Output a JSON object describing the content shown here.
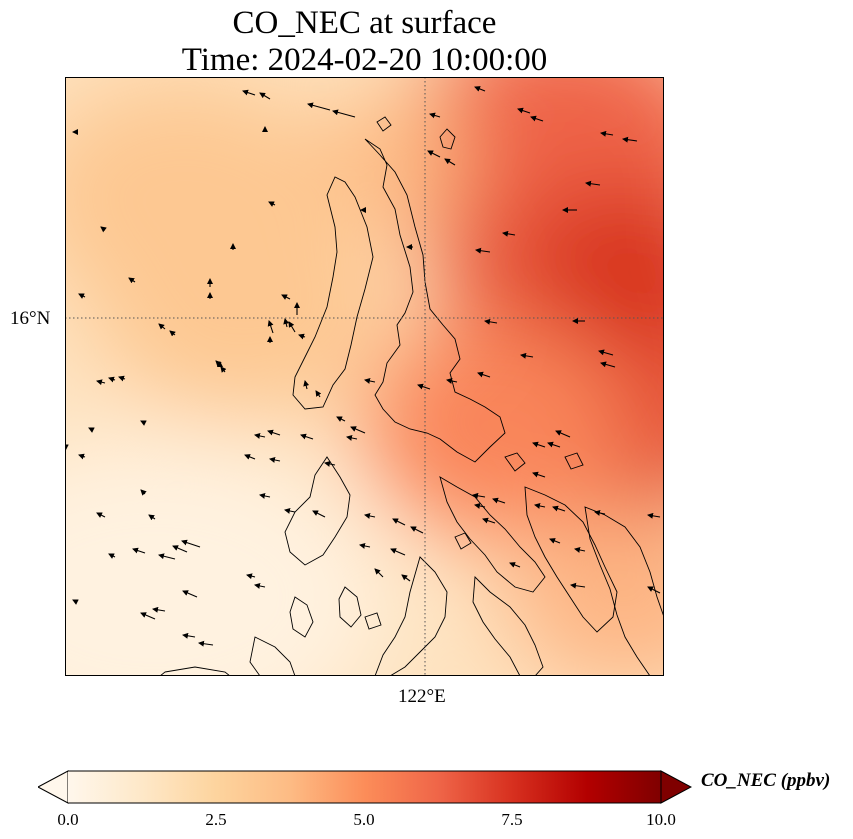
{
  "title": {
    "line1": "CO_NEC at surface",
    "line2": "Time: 2024-02-20 10:00:00"
  },
  "axes": {
    "lat_tick": {
      "label": "16°N",
      "value": 16
    },
    "lon_tick": {
      "label": "122°E",
      "value": 122
    },
    "gridline_style": "dotted"
  },
  "colorbar": {
    "label": "CO_NEC (ppbv)",
    "colormap": "OrRd",
    "min": 0.0,
    "max": 10.0,
    "extend": "both",
    "ticks": [
      "0.0",
      "2.5",
      "5.0",
      "7.5",
      "10.0"
    ],
    "tick_values": [
      0,
      2.5,
      5,
      7.5,
      10
    ],
    "stops": [
      "#fff7ec",
      "#fee8c8",
      "#fdd49e",
      "#fdbb84",
      "#fc8d59",
      "#ef6548",
      "#d7301f",
      "#b30000",
      "#7f0000"
    ]
  },
  "field": {
    "description_units": "ppbv",
    "features": [
      {
        "kind": "high-ne",
        "value": 8.2
      },
      {
        "kind": "high-e",
        "value": 7.2
      },
      {
        "kind": "moderate-nw",
        "value": 3.2
      },
      {
        "kind": "low-sw",
        "value": 0.4
      }
    ]
  },
  "wind_vectors": "present"
}
